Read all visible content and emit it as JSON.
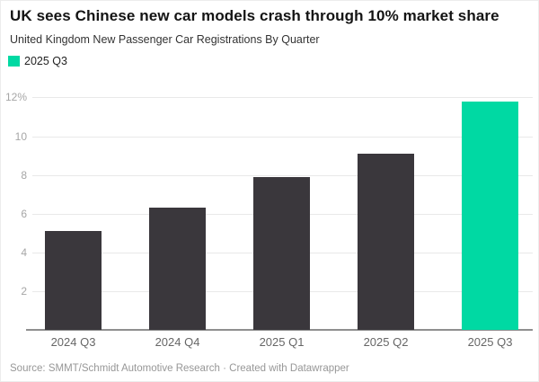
{
  "header": {
    "title": "UK sees Chinese new car models crash through 10% market share",
    "subtitle": "United Kingdom New Passenger Car Registrations By Quarter"
  },
  "legend": {
    "label": "2025 Q3",
    "color": "#00d9a3"
  },
  "footer": {
    "source": "Source: SMMT/Schmidt Automotive Research · Created with Datawrapper"
  },
  "colors": {
    "bar_default": "#3a373c",
    "bar_highlight": "#00d9a3",
    "gridline": "#e9e9e9",
    "axis_line": "#8f8f8f",
    "y_tick_text": "#a6a6a6",
    "x_tick_text": "#666666"
  },
  "chart_data": {
    "type": "bar",
    "title": "UK sees Chinese new car models crash through 10% market share",
    "subtitle": "United Kingdom New Passenger Car Registrations By Quarter",
    "categories": [
      "2024 Q3",
      "2024 Q4",
      "2025 Q1",
      "2025 Q2",
      "2025 Q3"
    ],
    "values": [
      5.1,
      6.3,
      7.9,
      9.1,
      11.8
    ],
    "unit": "%",
    "xlabel": "",
    "ylabel": "",
    "ylim": [
      0,
      12
    ],
    "yticks": [
      2,
      4,
      6,
      8,
      10,
      12
    ],
    "ytick_labels": [
      "2",
      "4",
      "6",
      "8",
      "10",
      "12%"
    ],
    "grid": true,
    "legend_entries": [
      {
        "label": "2025 Q3",
        "color": "#00d9a3"
      }
    ],
    "legend_position": "top-left",
    "highlight_index": 4
  }
}
